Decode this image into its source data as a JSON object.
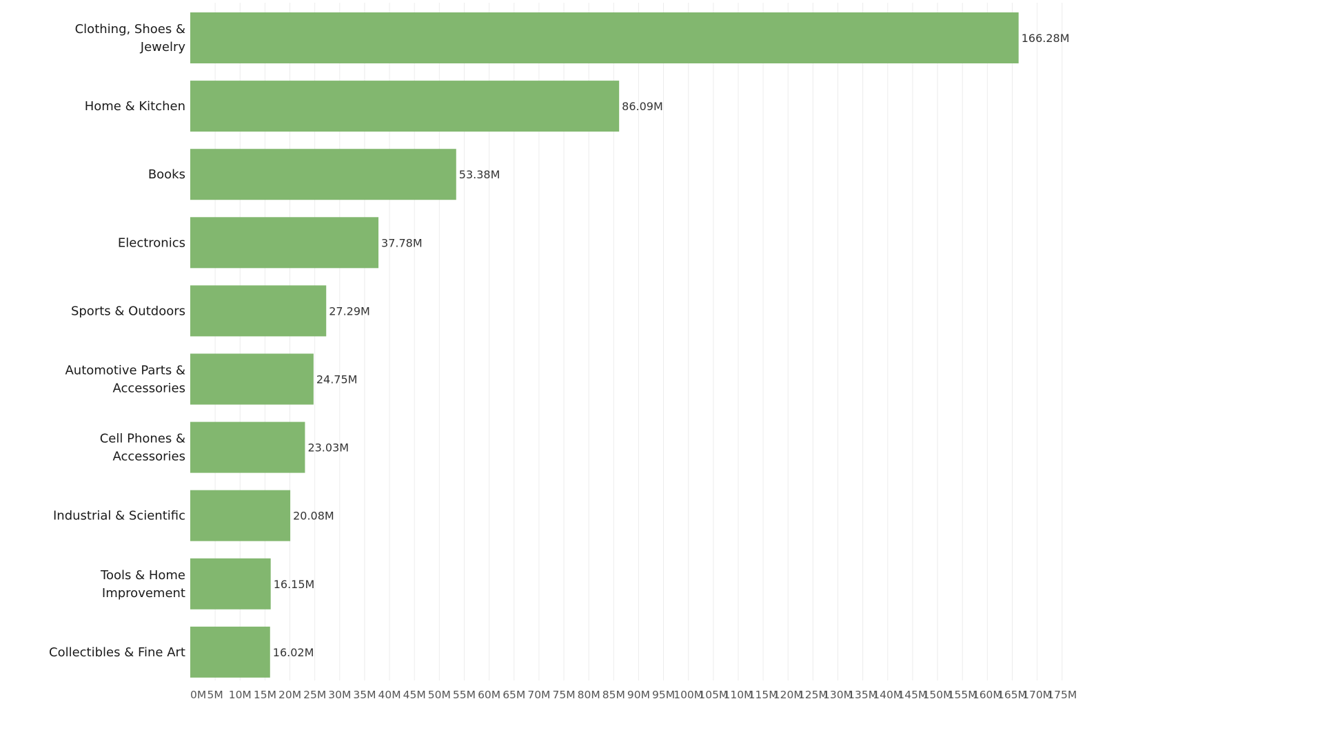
{
  "chart_data": {
    "type": "bar",
    "orientation": "horizontal",
    "categories": [
      [
        "Clothing, Shoes &",
        "Jewelry"
      ],
      [
        "Home & Kitchen"
      ],
      [
        "Books"
      ],
      [
        "Electronics"
      ],
      [
        "Sports & Outdoors"
      ],
      [
        "Automotive Parts &",
        "Accessories"
      ],
      [
        "Cell Phones &",
        "Accessories"
      ],
      [
        "Industrial & Scientific"
      ],
      [
        "Tools & Home",
        "Improvement"
      ],
      [
        "Collectibles & Fine Art"
      ]
    ],
    "values": [
      166.28,
      86.09,
      53.38,
      37.78,
      27.29,
      24.75,
      23.03,
      20.08,
      16.15,
      16.02
    ],
    "value_labels": [
      "166.28M",
      "86.09M",
      "53.38M",
      "37.78M",
      "27.29M",
      "24.75M",
      "23.03M",
      "20.08M",
      "16.15M",
      "16.02M"
    ],
    "x_ticks": [
      0,
      5,
      10,
      15,
      20,
      25,
      30,
      35,
      40,
      45,
      50,
      55,
      60,
      65,
      70,
      75,
      80,
      85,
      90,
      95,
      100,
      105,
      110,
      115,
      120,
      125,
      130,
      135,
      140,
      145,
      150,
      155,
      160,
      165,
      170,
      175
    ],
    "x_tick_labels": [
      "0M",
      "5M",
      "10M",
      "15M",
      "20M",
      "25M",
      "30M",
      "35M",
      "40M",
      "45M",
      "50M",
      "55M",
      "60M",
      "65M",
      "70M",
      "75M",
      "80M",
      "85M",
      "90M",
      "95M",
      "100M",
      "105M",
      "110M",
      "115M",
      "120M",
      "125M",
      "130M",
      "135M",
      "140M",
      "145M",
      "150M",
      "155M",
      "160M",
      "165M",
      "170M",
      "175M"
    ],
    "xlim": [
      0,
      175
    ],
    "title": "",
    "xlabel": "",
    "ylabel": "",
    "grid": "vertical",
    "legend": "none",
    "bar_color": "#82b76f"
  }
}
